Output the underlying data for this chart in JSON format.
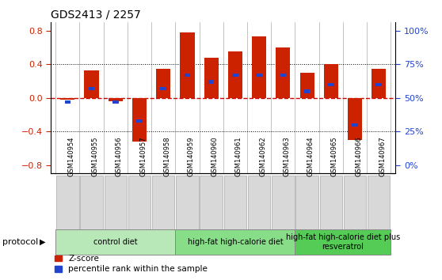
{
  "title": "GDS2413 / 2257",
  "samples": [
    "GSM140954",
    "GSM140955",
    "GSM140956",
    "GSM140957",
    "GSM140958",
    "GSM140959",
    "GSM140960",
    "GSM140961",
    "GSM140962",
    "GSM140963",
    "GSM140964",
    "GSM140965",
    "GSM140966",
    "GSM140967"
  ],
  "zscore": [
    -0.02,
    0.33,
    -0.04,
    -0.52,
    0.35,
    0.78,
    0.48,
    0.55,
    0.73,
    0.6,
    0.3,
    0.4,
    -0.5,
    0.35
  ],
  "pct_rank": [
    47,
    57,
    47,
    33,
    57,
    67,
    62,
    67,
    67,
    67,
    55,
    60,
    30,
    60
  ],
  "groups": [
    {
      "label": "control diet",
      "start": 0,
      "end": 5,
      "color": "#b8e8b8"
    },
    {
      "label": "high-fat high-calorie diet",
      "start": 5,
      "end": 10,
      "color": "#88dd88"
    },
    {
      "label": "high-fat high-calorie diet plus\nresveratrol",
      "start": 10,
      "end": 14,
      "color": "#55cc55"
    }
  ],
  "bar_color_red": "#cc2200",
  "bar_color_blue": "#2244cc",
  "ylim_main": [
    -0.9,
    0.9
  ],
  "ylim_display": [
    -0.8,
    0.8
  ],
  "yticks_left": [
    -0.8,
    -0.4,
    0.0,
    0.4,
    0.8
  ],
  "right_tick_positions": [
    -0.8,
    -0.4,
    0.0,
    0.4,
    0.8
  ],
  "right_tick_labels": [
    "0%",
    "25%",
    "50%",
    "75%",
    "100%"
  ],
  "protocol_label": "protocol",
  "legend_red": "Z-score",
  "legend_blue": "percentile rank within the sample",
  "hline_color": "#cc0000",
  "grid_color": "#000000"
}
